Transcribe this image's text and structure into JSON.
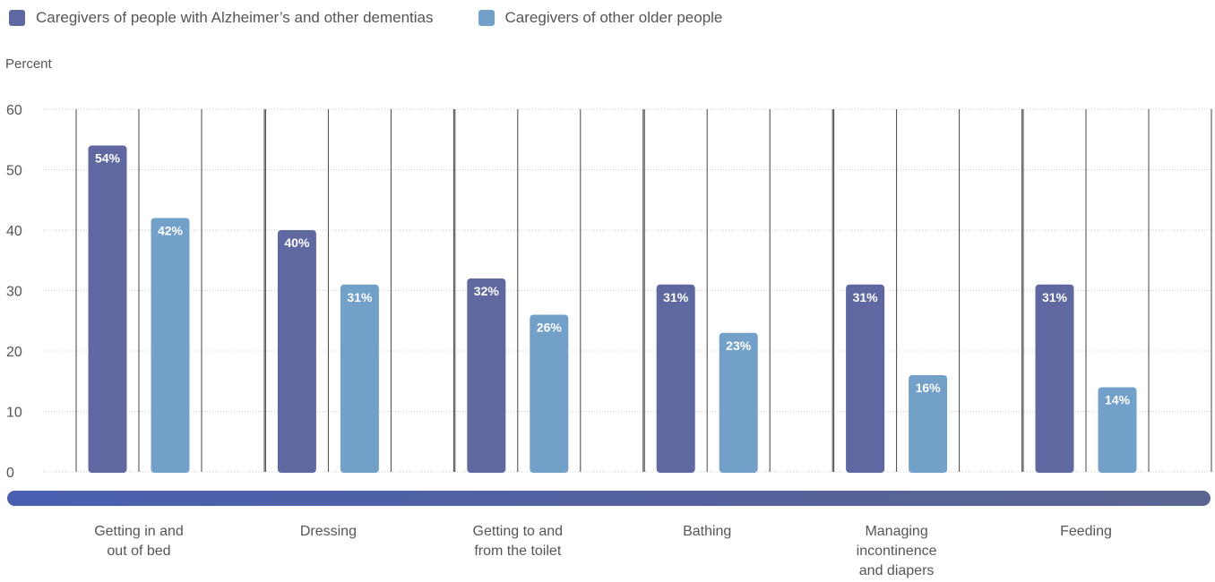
{
  "legend": {
    "series1": "Caregivers of people with Alzheimer’s and other dementias",
    "series2": "Caregivers of other older people"
  },
  "colors": {
    "series1": "#5f68a0",
    "series2": "#72a0c8",
    "grid": "#cccccc",
    "divider": "#444444",
    "axis_bar_start": "#4a5fb0",
    "axis_bar_end": "#5a6590"
  },
  "chart_data": {
    "type": "bar",
    "ylabel": "Percent",
    "ylim": [
      0,
      60
    ],
    "yticks": [
      0,
      10,
      20,
      30,
      40,
      50,
      60
    ],
    "grid": true,
    "legend_position": "top-left",
    "categories": [
      [
        "Getting in and",
        "out of bed"
      ],
      [
        "Dressing"
      ],
      [
        "Getting to and",
        "from the toilet"
      ],
      [
        "Bathing"
      ],
      [
        "Managing",
        "incontinence",
        "and diapers"
      ],
      [
        "Feeding"
      ]
    ],
    "series": [
      {
        "name": "Caregivers of people with Alzheimer’s and other dementias",
        "values": [
          54,
          40,
          32,
          31,
          31,
          31
        ],
        "labels": [
          "54%",
          "40%",
          "32%",
          "31%",
          "31%",
          "31%"
        ]
      },
      {
        "name": "Caregivers of other older people",
        "values": [
          42,
          31,
          26,
          23,
          16,
          14
        ],
        "labels": [
          "42%",
          "31%",
          "26%",
          "23%",
          "16%",
          "14%"
        ]
      }
    ]
  }
}
